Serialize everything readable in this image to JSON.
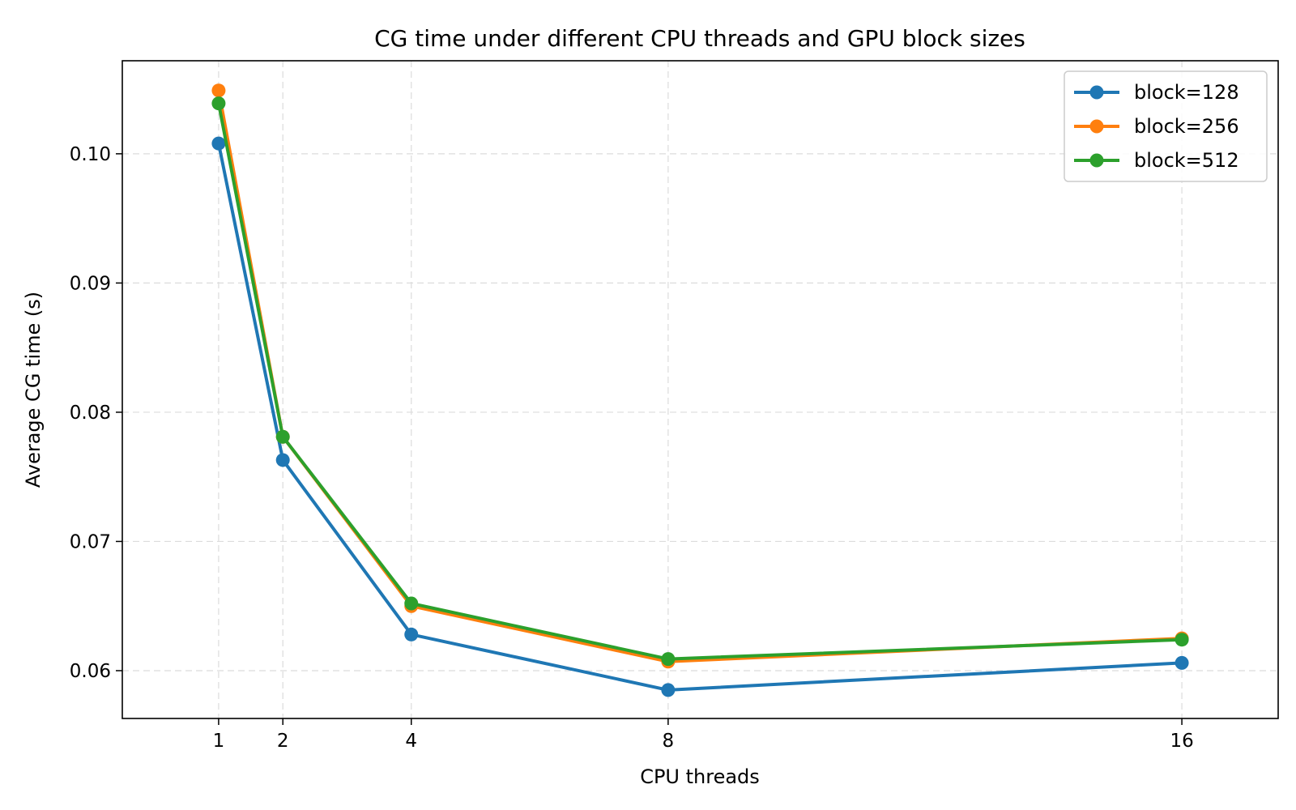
{
  "chart_data": {
    "type": "line",
    "title": "CG time under different CPU threads and GPU block sizes",
    "xlabel": "CPU threads",
    "ylabel": "Average CG time (s)",
    "x": [
      1,
      2,
      4,
      8,
      16
    ],
    "xticks": [
      1,
      2,
      4,
      8,
      16
    ],
    "yticks": [
      0.06,
      0.07,
      0.08,
      0.09,
      0.1
    ],
    "ytick_labels": [
      "0.06",
      "0.07",
      "0.08",
      "0.09",
      "0.10"
    ],
    "xlim": [
      -0.5,
      17.5
    ],
    "ylim": [
      0.0563,
      0.1072
    ],
    "grid": true,
    "legend_position": "top-right",
    "series": [
      {
        "name": "block=128",
        "color": "#1f77b4",
        "values": [
          0.1008,
          0.0763,
          0.0628,
          0.0585,
          0.0606
        ]
      },
      {
        "name": "block=256",
        "color": "#ff7f0e",
        "values": [
          0.1049,
          0.0781,
          0.065,
          0.0607,
          0.0625
        ]
      },
      {
        "name": "block=512",
        "color": "#2ca02c",
        "values": [
          0.1039,
          0.0781,
          0.0652,
          0.0609,
          0.0624
        ]
      }
    ]
  }
}
